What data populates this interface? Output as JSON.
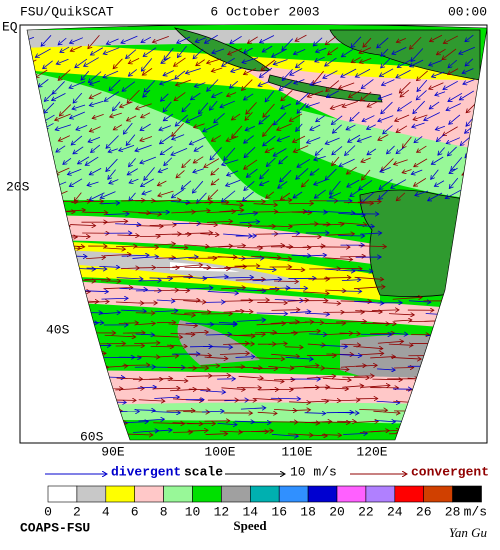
{
  "header": {
    "left": "FSU/QuikSCAT",
    "center": "6 October 2003",
    "right": "00:00"
  },
  "map": {
    "lat_labels": [
      "EQ",
      "20S",
      "40S",
      "60S"
    ],
    "lon_labels": [
      "90E",
      "100E",
      "110E",
      "120E"
    ]
  },
  "legend": {
    "divergent": "divergent",
    "scale": "scale",
    "scale_value": "10 m/s",
    "convergent": "convergent"
  },
  "colorbar": {
    "labels": [
      "0",
      "2",
      "4",
      "6",
      "8",
      "10",
      "12",
      "14",
      "16",
      "18",
      "20",
      "22",
      "24",
      "26",
      "28"
    ],
    "unit": "m/s",
    "title": "Speed",
    "colors": [
      "#ffffff",
      "#c8c8c8",
      "#ffff00",
      "#ffc8c8",
      "#98f898",
      "#00e000",
      "#a0a0a0",
      "#00b0b0",
      "#3090ff",
      "#0000d0",
      "#ff60ff",
      "#b080ff",
      "#ff0000",
      "#d04000",
      "#000000"
    ]
  },
  "footer": {
    "left": "COAPS-FSU",
    "right": "Yan Gu"
  }
}
